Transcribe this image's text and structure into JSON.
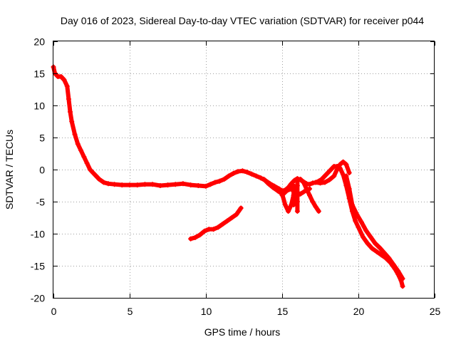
{
  "chart_data": {
    "type": "scatter",
    "title": "Day 016 of 2023, Sidereal Day-to-day VTEC variation (SDTVAR) for receiver p044",
    "xlabel": "GPS time / hours",
    "ylabel": "SDTVAR / TECUs",
    "xlim": [
      0,
      25
    ],
    "ylim": [
      -20,
      20
    ],
    "xticks": [
      0,
      5,
      10,
      15,
      20,
      25
    ],
    "yticks": [
      -20,
      -15,
      -10,
      -5,
      0,
      5,
      10,
      15,
      20
    ],
    "grid": true,
    "legend": "none",
    "series_color": "#ff0000",
    "series": [
      {
        "name": "main-track",
        "x": [
          0.0,
          0.1,
          0.3,
          0.5,
          0.7,
          0.9,
          1.0,
          1.1,
          1.2,
          1.4,
          1.6,
          1.8,
          2.0,
          2.2,
          2.4,
          2.6,
          2.8,
          3.0,
          3.3,
          3.6,
          4.0,
          4.5,
          5.0,
          5.5,
          6.0,
          6.5,
          7.0,
          7.5,
          8.0,
          8.5,
          9.0,
          9.5,
          10.0,
          10.3,
          10.6,
          10.9,
          11.2,
          11.5,
          11.8,
          12.1,
          12.4,
          12.7,
          13.0,
          13.3,
          13.6,
          13.9,
          14.2,
          14.5,
          14.8,
          15.0,
          15.2,
          15.4,
          15.6,
          15.8,
          16.0,
          16.2,
          16.4,
          16.6,
          16.8,
          17.0,
          17.2,
          17.4,
          17.6,
          17.8,
          18.0,
          18.2,
          18.4,
          18.6,
          18.8,
          19.0,
          19.2,
          19.4,
          19.6,
          19.8,
          20.0,
          20.3,
          20.6,
          20.9,
          21.2,
          21.5,
          21.8,
          22.1,
          22.4,
          22.6,
          22.8,
          22.9
        ],
        "y": [
          16,
          15,
          14.5,
          14.5,
          14,
          13,
          11,
          9,
          7.5,
          5.5,
          4,
          3,
          2,
          1,
          0,
          -0.5,
          -1,
          -1.5,
          -2,
          -2.2,
          -2.3,
          -2.4,
          -2.4,
          -2.4,
          -2.3,
          -2.3,
          -2.5,
          -2.4,
          -2.3,
          -2.2,
          -2.4,
          -2.5,
          -2.6,
          -2.3,
          -2.0,
          -1.8,
          -1.5,
          -1.0,
          -0.6,
          -0.3,
          -0.2,
          -0.4,
          -0.7,
          -1.0,
          -1.3,
          -1.7,
          -2.2,
          -2.6,
          -3.0,
          -3.3,
          -3.2,
          -2.8,
          -2.2,
          -1.7,
          -1.4,
          -1.6,
          -1.9,
          -2.2,
          -2.3,
          -2.1,
          -2.0,
          -1.8,
          -1.5,
          -1.0,
          -0.5,
          0,
          0.5,
          0.5,
          0.2,
          -0.8,
          -2.5,
          -4.5,
          -6.5,
          -8.0,
          -9.0,
          -10.5,
          -11.5,
          -12.3,
          -12.8,
          -13.3,
          -13.8,
          -14.5,
          -15.5,
          -16.3,
          -17.3,
          -18.2
        ]
      },
      {
        "name": "branch-14-16",
        "x": [
          13.8,
          14.1,
          14.4,
          14.7,
          15.0,
          15.2,
          15.4,
          15.6,
          15.8,
          16.0
        ],
        "y": [
          -1.5,
          -2.2,
          -2.8,
          -3.3,
          -3.8,
          -5.5,
          -6.5,
          -5.5,
          -3.5,
          -2.5
        ]
      },
      {
        "name": "branch-15-16",
        "x": [
          15.0,
          15.3,
          15.6,
          15.8,
          16.0,
          16.2,
          16.4,
          16.6,
          16.8
        ],
        "y": [
          -4.0,
          -3.3,
          -3.0,
          -3.5,
          -4.0,
          -3.8,
          -3.5,
          -3.2,
          -3.0
        ]
      },
      {
        "name": "branch-16-17",
        "x": [
          16.2,
          16.4,
          16.6,
          16.8,
          17.0,
          17.2,
          17.4
        ],
        "y": [
          -1.5,
          -2.0,
          -3.0,
          -4.0,
          -5.0,
          -5.8,
          -6.5
        ]
      },
      {
        "name": "spike-16",
        "x": [
          16.0,
          16.0,
          16.0,
          16.0
        ],
        "y": [
          -1.5,
          -3.5,
          -5.0,
          -6.5
        ]
      },
      {
        "name": "spike-15.8",
        "x": [
          15.75,
          15.75,
          15.75
        ],
        "y": [
          -2.5,
          -4.0,
          -5.5
        ]
      },
      {
        "name": "branch-17-20",
        "x": [
          17.2,
          17.5,
          17.8,
          18.1,
          18.4,
          18.6,
          18.8,
          19.0,
          19.2,
          19.4
        ],
        "y": [
          -2.0,
          -2.1,
          -2.0,
          -1.6,
          -1.0,
          0.0,
          0.8,
          1.2,
          0.8,
          -0.5
        ]
      },
      {
        "name": "branch-19-23",
        "x": [
          19.2,
          19.4,
          19.6,
          19.9,
          20.2,
          20.5,
          20.8,
          21.1,
          21.4,
          21.7,
          22.0,
          22.3,
          22.6,
          22.9
        ],
        "y": [
          -1.0,
          -3.0,
          -5.5,
          -7.0,
          -8.2,
          -9.5,
          -10.5,
          -11.5,
          -12.2,
          -13.0,
          -13.8,
          -14.8,
          -15.8,
          -17.0
        ]
      },
      {
        "name": "lower-branch",
        "x": [
          9.0,
          9.3,
          9.6,
          9.9,
          10.2,
          10.5,
          10.8,
          11.1,
          11.4,
          11.7,
          12.0,
          12.3
        ],
        "y": [
          -10.8,
          -10.6,
          -10.2,
          -9.6,
          -9.3,
          -9.3,
          -9.0,
          -8.5,
          -8.0,
          -7.5,
          -7.0,
          -6.0
        ]
      }
    ]
  }
}
